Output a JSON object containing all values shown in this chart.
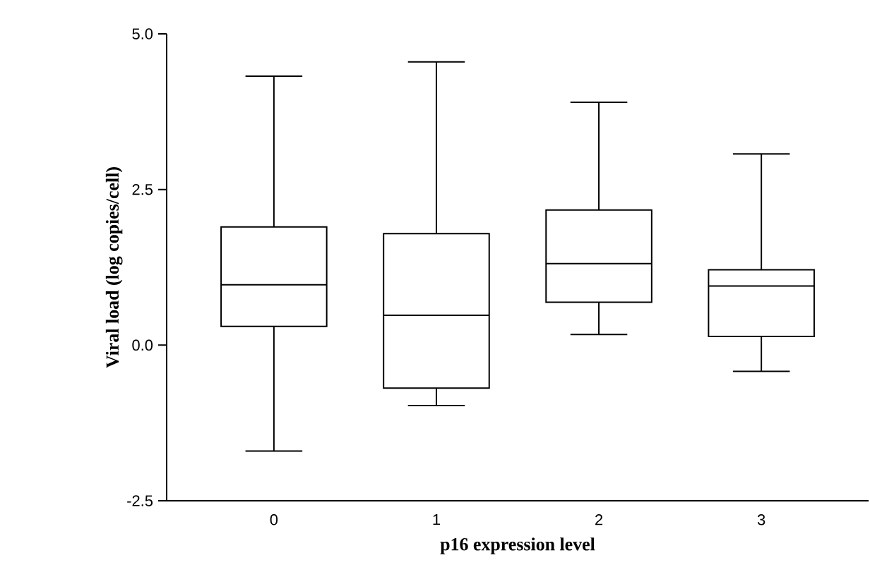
{
  "chart_data": {
    "type": "box",
    "xlabel": "p16 expression level",
    "ylabel": "Viral load (log copies/cell)",
    "categories": [
      "0",
      "1",
      "2",
      "3"
    ],
    "boxes": [
      {
        "low": -1.7,
        "q1": 0.3,
        "median": 0.97,
        "q3": 1.9,
        "high": 4.32
      },
      {
        "low": -0.97,
        "q1": -0.69,
        "median": 0.48,
        "q3": 1.79,
        "high": 4.55
      },
      {
        "low": 0.17,
        "q1": 0.69,
        "median": 1.31,
        "q3": 2.17,
        "high": 3.9
      },
      {
        "low": -0.42,
        "q1": 0.14,
        "median": 0.95,
        "q3": 1.21,
        "high": 3.07
      }
    ],
    "ylim": [
      -2.5,
      5.0
    ],
    "yticks": [
      {
        "value": -2.5,
        "label": "-2.5"
      },
      {
        "value": 0,
        "label": "0.0"
      },
      {
        "value": 2.5,
        "label": "2.5"
      },
      {
        "value": 5,
        "label": "5.0"
      }
    ]
  }
}
